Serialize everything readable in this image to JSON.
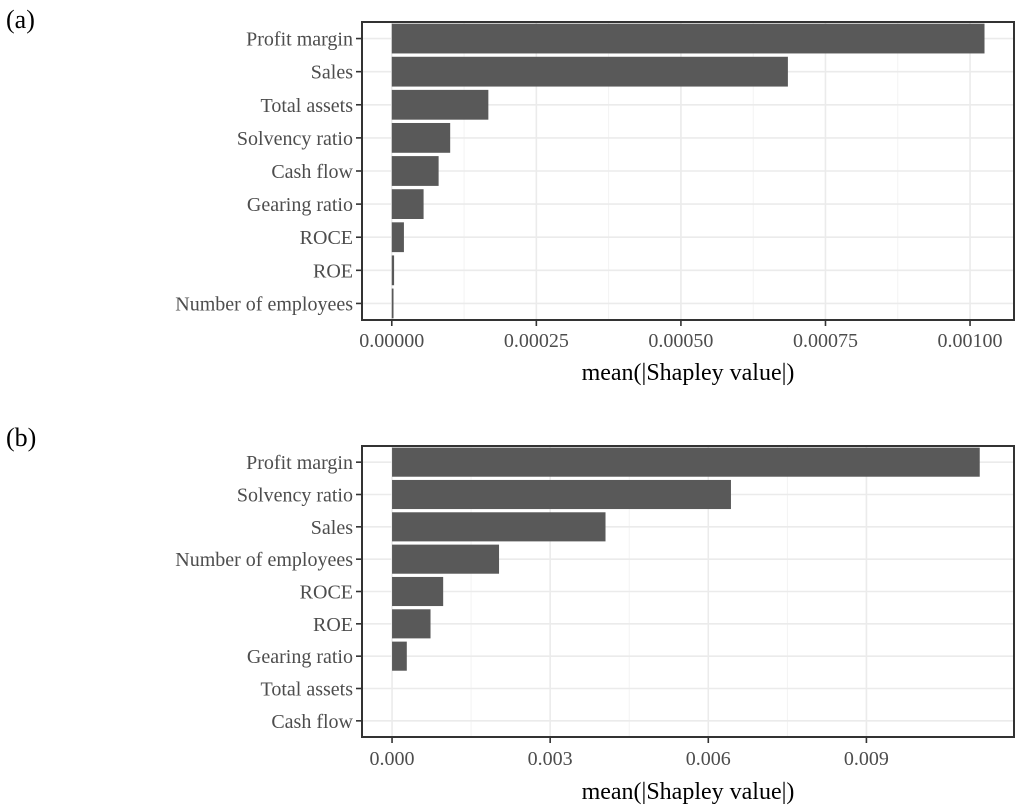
{
  "chart_data": [
    {
      "type": "bar",
      "orientation": "horizontal",
      "panel_label": "(a)",
      "categories": [
        "Profit margin",
        "Sales",
        "Total assets",
        "Solvency ratio",
        "Cash flow",
        "Gearing ratio",
        "ROCE",
        "ROE",
        "Number of employees"
      ],
      "values": [
        0.001025,
        0.000685,
        0.000167,
        0.000101,
        8.1e-05,
        5.5e-05,
        2.1e-05,
        4e-06,
        3e-06
      ],
      "xlabel": "mean(|Shapley value|)",
      "xlim": [
        -5.15e-05,
        0.001076
      ],
      "xticks": [
        0,
        0.00025,
        0.0005,
        0.00075,
        0.001
      ],
      "xtick_labels": [
        "0.00000",
        "0.00025",
        "0.00050",
        "0.00075",
        "0.00100"
      ],
      "bar_color": "#595959",
      "grid": true
    },
    {
      "type": "bar",
      "orientation": "horizontal",
      "panel_label": "(b)",
      "categories": [
        "Profit margin",
        "Solvency ratio",
        "Sales",
        "Number of employees",
        "ROCE",
        "ROE",
        "Gearing ratio",
        "Total assets",
        "Cash flow"
      ],
      "values": [
        0.01115,
        0.00643,
        0.00405,
        0.00203,
        0.00097,
        0.00073,
        0.00028,
        0,
        0
      ],
      "xlabel": "mean(|Shapley value|)",
      "xlim": [
        -0.00057,
        0.0118
      ],
      "xticks": [
        0,
        0.003,
        0.006,
        0.009
      ],
      "xtick_labels": [
        "0.000",
        "0.003",
        "0.006",
        "0.009"
      ],
      "bar_color": "#595959",
      "grid": true
    }
  ]
}
